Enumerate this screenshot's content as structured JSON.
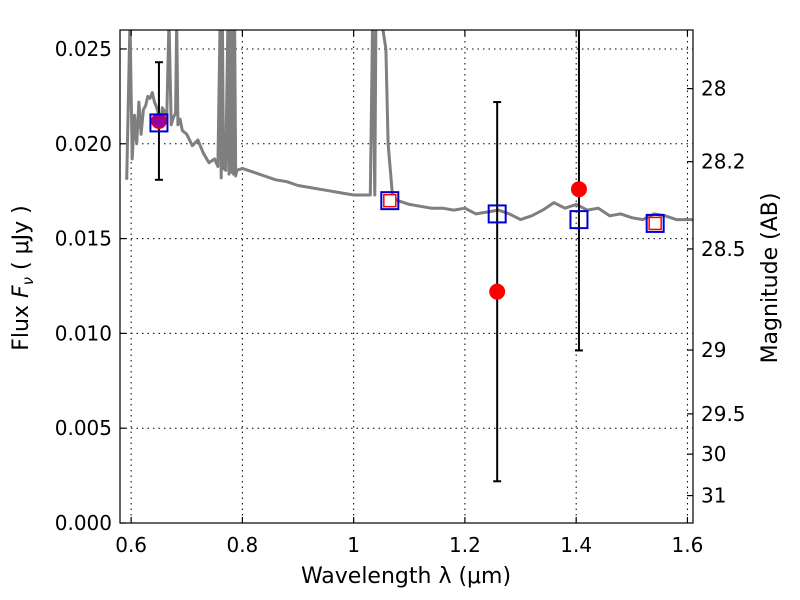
{
  "chart_data": {
    "type": "line",
    "xlabel": "Wavelength  λ (μm)",
    "ylabel": "Flux  F_ν  ( μJy )",
    "ylabel_parts": {
      "prefix": "Flux  ",
      "symbol": "F",
      "subscript": "ν",
      "unit": "  ( μJy )"
    },
    "y2label": "Magnitude (AB)",
    "xlim": [
      0.58,
      1.61
    ],
    "ylim": [
      0.0,
      0.026
    ],
    "grid": true,
    "x_ticks": [
      {
        "value": 0.6,
        "label": "0.6"
      },
      {
        "value": 0.8,
        "label": "0.8"
      },
      {
        "value": 1.0,
        "label": "1"
      },
      {
        "value": 1.2,
        "label": "1.2"
      },
      {
        "value": 1.4,
        "label": "1.4"
      },
      {
        "value": 1.6,
        "label": "1.6"
      }
    ],
    "y_ticks": [
      {
        "value": 0.0,
        "label": "0.000"
      },
      {
        "value": 0.005,
        "label": "0.005"
      },
      {
        "value": 0.01,
        "label": "0.010"
      },
      {
        "value": 0.015,
        "label": "0.015"
      },
      {
        "value": 0.02,
        "label": "0.020"
      },
      {
        "value": 0.025,
        "label": "0.025"
      }
    ],
    "y2_ticks": [
      {
        "value": 28.0,
        "label": "28"
      },
      {
        "value": 28.2,
        "label": "28.2"
      },
      {
        "value": 28.5,
        "label": "28.5"
      },
      {
        "value": 29.0,
        "label": "29"
      },
      {
        "value": 29.5,
        "label": "29.5"
      },
      {
        "value": 30.0,
        "label": "30"
      },
      {
        "value": 31.0,
        "label": "31"
      }
    ],
    "series": [
      {
        "name": "model spectrum",
        "kind": "line",
        "color": "#7f7f7f",
        "x": [
          0.592,
          0.598,
          0.602,
          0.606,
          0.61,
          0.614,
          0.618,
          0.622,
          0.626,
          0.63,
          0.634,
          0.638,
          0.642,
          0.646,
          0.65,
          0.654,
          0.656,
          0.66,
          0.664,
          0.668,
          0.672,
          0.676,
          0.68,
          0.682,
          0.684,
          0.688,
          0.692,
          0.7,
          0.71,
          0.72,
          0.73,
          0.74,
          0.75,
          0.756,
          0.76,
          0.762,
          0.764,
          0.766,
          0.77,
          0.774,
          0.776,
          0.778,
          0.78,
          0.782,
          0.784,
          0.786,
          0.788,
          0.79,
          0.8,
          0.82,
          0.84,
          0.86,
          0.88,
          0.9,
          0.92,
          0.94,
          0.96,
          0.98,
          1.0,
          1.02,
          1.03,
          1.034,
          1.038,
          1.04,
          1.05,
          1.058,
          1.062,
          1.07,
          1.08,
          1.1,
          1.12,
          1.14,
          1.16,
          1.18,
          1.2,
          1.22,
          1.24,
          1.26,
          1.28,
          1.3,
          1.32,
          1.34,
          1.36,
          1.38,
          1.4,
          1.42,
          1.44,
          1.46,
          1.48,
          1.5,
          1.52,
          1.54,
          1.56,
          1.58,
          1.6,
          1.61
        ],
        "y": [
          0.0181,
          0.0265,
          0.0192,
          0.0215,
          0.02,
          0.0222,
          0.0205,
          0.0218,
          0.022,
          0.0225,
          0.0224,
          0.0227,
          0.0222,
          0.0219,
          0.0215,
          0.0212,
          0.0219,
          0.0217,
          0.0213,
          0.0265,
          0.021,
          0.0214,
          0.0216,
          0.0265,
          0.021,
          0.0213,
          0.0207,
          0.0205,
          0.0199,
          0.0202,
          0.0195,
          0.019,
          0.0192,
          0.0188,
          0.0265,
          0.0182,
          0.0265,
          0.0187,
          0.0186,
          0.0265,
          0.0184,
          0.0265,
          0.0185,
          0.0265,
          0.0184,
          0.0265,
          0.0183,
          0.0186,
          0.0187,
          0.0185,
          0.0183,
          0.0181,
          0.018,
          0.0178,
          0.0177,
          0.0176,
          0.0175,
          0.0174,
          0.0173,
          0.0173,
          0.0173,
          0.0265,
          0.0173,
          0.0265,
          0.0265,
          0.025,
          0.02,
          0.0172,
          0.017,
          0.0168,
          0.0167,
          0.0166,
          0.0166,
          0.0165,
          0.0166,
          0.0163,
          0.0164,
          0.0165,
          0.0163,
          0.016,
          0.0162,
          0.0165,
          0.0169,
          0.0166,
          0.0168,
          0.0165,
          0.0166,
          0.0162,
          0.0163,
          0.0161,
          0.016,
          0.0163,
          0.0162,
          0.016,
          0.016,
          0.016
        ]
      },
      {
        "name": "model photometry",
        "kind": "open-square",
        "edge_color": "#0000cc",
        "x": [
          0.65,
          1.065,
          1.258,
          1.405,
          1.542
        ],
        "y": [
          0.0211,
          0.017,
          0.0163,
          0.016,
          0.0158
        ]
      },
      {
        "name": "observed photometry",
        "kind": "filled-circle",
        "color": "#ff0000",
        "x": [
          0.65,
          1.258,
          1.405
        ],
        "y": [
          0.0212,
          0.0122,
          0.0176
        ],
        "yerr_low": [
          0.0031,
          0.01,
          0.0085
        ],
        "yerr_high": [
          0.0031,
          0.01,
          0.0087
        ]
      },
      {
        "name": "upper limit points",
        "kind": "small-square",
        "edge_color": "#ff0000",
        "x": [
          1.065,
          1.542
        ],
        "y": [
          0.017,
          0.0158
        ]
      }
    ],
    "accent_colors": {
      "overlap_marker": "#990099"
    }
  }
}
